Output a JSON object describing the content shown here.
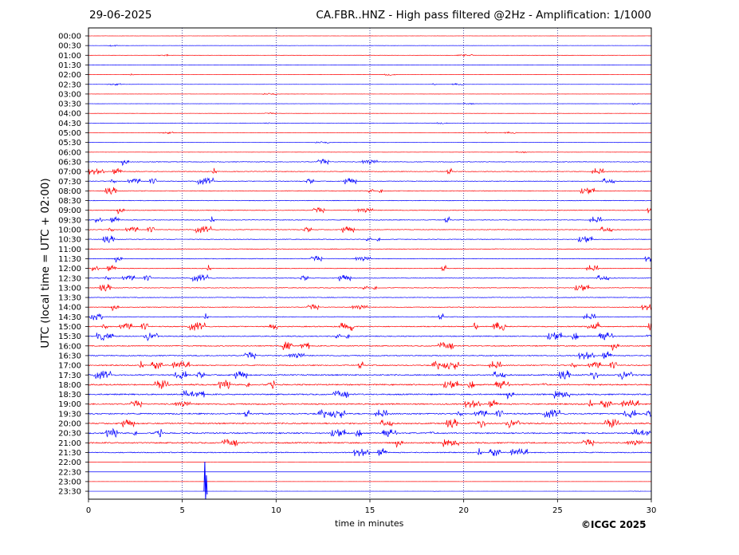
{
  "header": {
    "date": "29-06-2025",
    "title": "CA.FBR..HNZ - High pass filtered @2Hz - Amplification: 1/1000"
  },
  "footer": {
    "copyright": "©ICGC 2025"
  },
  "chart_data": {
    "type": "line",
    "title": "CA.FBR..HNZ - High pass filtered @2Hz - Amplification: 1/1000",
    "xlabel": "time in minutes",
    "ylabel": "UTC (local time = UTC + 02:00)",
    "xlim": [
      0,
      30
    ],
    "xticks": [
      0,
      5,
      10,
      15,
      20,
      25,
      30
    ],
    "vertical_gridlines_at": [
      5,
      10,
      15,
      20,
      25
    ],
    "row_labels": [
      "00:00",
      "00:30",
      "01:00",
      "01:30",
      "02:00",
      "02:30",
      "03:00",
      "03:30",
      "04:00",
      "04:30",
      "05:00",
      "05:30",
      "06:00",
      "06:30",
      "07:00",
      "07:30",
      "08:00",
      "08:30",
      "09:00",
      "09:30",
      "10:00",
      "10:30",
      "11:00",
      "11:30",
      "12:00",
      "12:30",
      "13:00",
      "13:30",
      "14:00",
      "14:30",
      "15:00",
      "15:30",
      "16:00",
      "16:30",
      "17:00",
      "17:30",
      "18:00",
      "18:30",
      "19:00",
      "19:30",
      "20:00",
      "20:30",
      "21:00",
      "21:30",
      "22:00",
      "22:30",
      "23:00",
      "23:30"
    ],
    "series_colors": [
      "#ff0000",
      "#0000ff"
    ],
    "colors_alternate_by_row": true,
    "event_marker": {
      "row": "23:30",
      "x": 6.2
    }
  }
}
